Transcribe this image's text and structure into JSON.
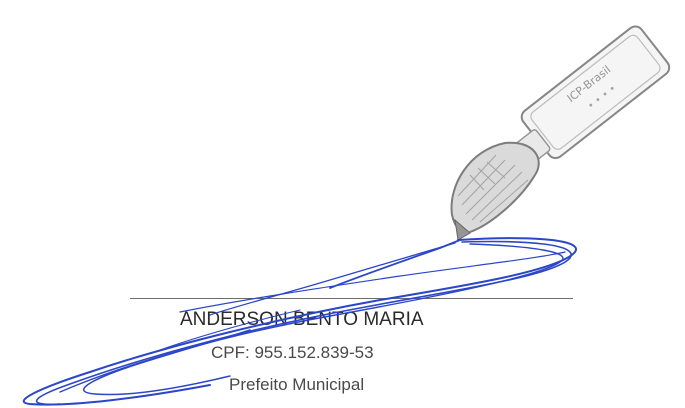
{
  "signatory": {
    "name": "ANDERSON BENTO MARIA",
    "cpf": "CPF: 955.152.839-53",
    "role": "Prefeito Municipal"
  },
  "signature_image": {
    "kind": "handwritten-signature-with-digital-pen-graphic",
    "ink_color": "#2b46c8",
    "pen_text": "ICP-Brasil"
  },
  "colors": {
    "background": "#ffffff",
    "text_dark": "#2a2a2a",
    "text_gray": "#4a4a4a",
    "line": "#6d6d6d",
    "ink": "#2b46c8"
  }
}
